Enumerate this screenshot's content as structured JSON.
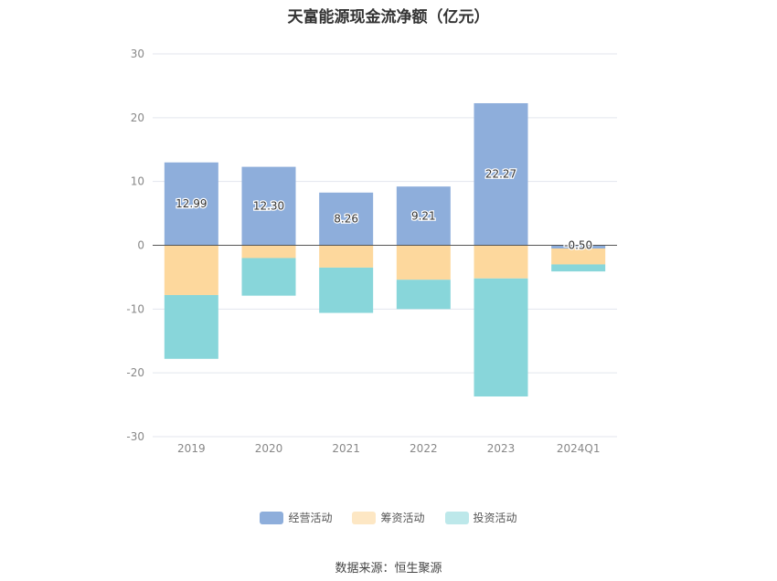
{
  "chart_data": {
    "type": "bar",
    "stacked": true,
    "title": "天富能源现金流净额（亿元）",
    "categories": [
      "2019",
      "2020",
      "2021",
      "2022",
      "2023",
      "2024Q1"
    ],
    "ylim": [
      -30,
      30
    ],
    "yticks": [
      30,
      20,
      10,
      0,
      -10,
      -20,
      -30
    ],
    "grid": true,
    "legend_position": "bottom",
    "series": [
      {
        "name": "经营活动",
        "color": "#8eaedb",
        "values": [
          12.99,
          12.3,
          8.26,
          9.21,
          22.27,
          -0.5
        ],
        "labels": [
          "12.99",
          "12.30",
          "8.26",
          "9.21",
          "22.27",
          "-0.50"
        ]
      },
      {
        "name": "筹资活动",
        "color": "#fdd89d",
        "values": [
          -7.8,
          -2.0,
          -3.5,
          -5.4,
          -5.2,
          -2.5
        ]
      },
      {
        "name": "投资活动",
        "color": "#88d6da",
        "values": [
          -10.0,
          -5.9,
          -7.1,
          -4.6,
          -18.5,
          -1.1
        ]
      }
    ]
  },
  "source": "数据来源：恒生聚源"
}
